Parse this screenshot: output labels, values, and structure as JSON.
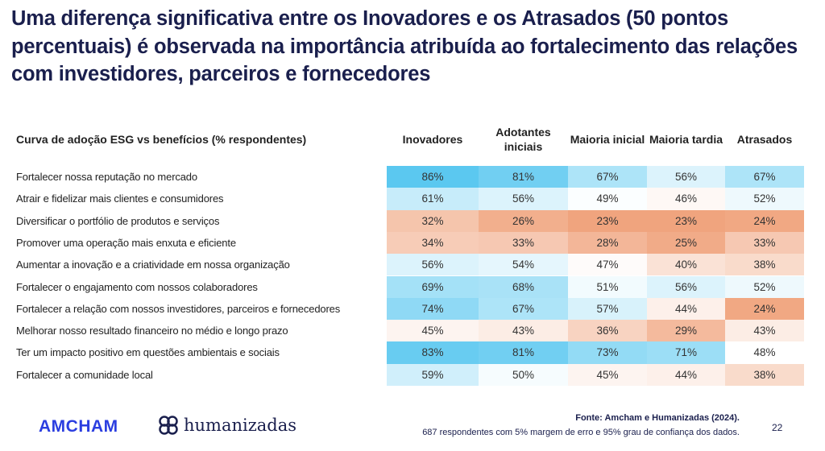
{
  "title": "Uma diferença significativa entre os Inovadores e os Atrasados (50 pontos percentuais) é observada na importância atribuída ao fortalecimento das relações com investidores, parceiros e fornecedores",
  "chart_data": {
    "type": "heatmap",
    "title": "Curva de adoção ESG vs benefícios (% respondentes)",
    "columns": [
      "Inovadores",
      "Adotantes iniciais",
      "Maioria inicial",
      "Maioria tardia",
      "Atrasados"
    ],
    "rows": [
      {
        "label": "Fortalecer nossa reputação no mercado",
        "values": [
          86,
          81,
          67,
          56,
          67
        ]
      },
      {
        "label": "Atrair e fidelizar mais clientes e consumidores",
        "values": [
          61,
          56,
          49,
          46,
          52
        ]
      },
      {
        "label": "Diversificar o portfólio de produtos e serviços",
        "values": [
          32,
          26,
          23,
          23,
          24
        ]
      },
      {
        "label": "Promover uma operação mais enxuta e eficiente",
        "values": [
          34,
          33,
          28,
          25,
          33
        ]
      },
      {
        "label": "Aumentar a inovação e a criatividade em nossa organização",
        "values": [
          56,
          54,
          47,
          40,
          38
        ]
      },
      {
        "label": "Fortalecer o engajamento com nossos colaboradores",
        "values": [
          69,
          68,
          51,
          56,
          52
        ]
      },
      {
        "label": "Fortalecer a relação com nossos investidores, parceiros e fornecedores",
        "values": [
          74,
          67,
          57,
          44,
          24
        ]
      },
      {
        "label": "Melhorar nosso resultado financeiro no médio e longo prazo",
        "values": [
          45,
          43,
          36,
          29,
          43
        ]
      },
      {
        "label": "Ter um impacto positivo em questões ambientais e sociais",
        "values": [
          83,
          81,
          73,
          71,
          48
        ]
      },
      {
        "label": "Fortalecer a comunidade local",
        "values": [
          59,
          50,
          45,
          44,
          38
        ]
      }
    ],
    "unit": "%",
    "colors": {
      "high": "#5bc8f0",
      "mid": "#ffffff",
      "low": "#f0a47e"
    }
  },
  "footer": {
    "logo1": "AMCHAM",
    "logo2": "humanizadas",
    "source": "Fonte: Amcham e Humanizadas (2024).",
    "note": "687 respondentes com 5% margem de erro e 95% grau de confiança dos dados.",
    "page": "22"
  }
}
